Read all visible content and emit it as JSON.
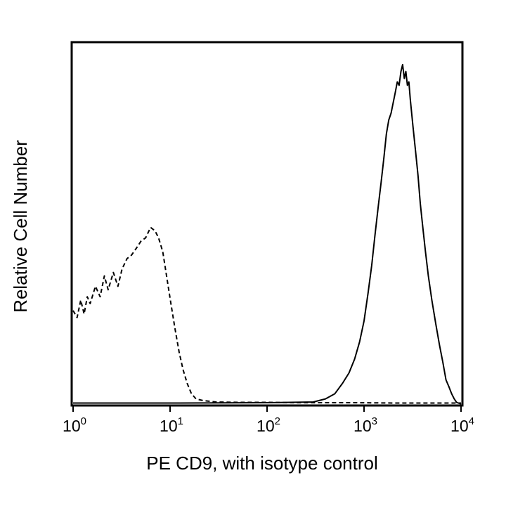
{
  "chart_data": {
    "type": "line",
    "title": "",
    "xlabel": "PE CD9, with isotype control",
    "ylabel": "Relative Cell Number",
    "xscale": "log",
    "xlim": [
      1,
      10000
    ],
    "ylim": [
      0,
      100
    ],
    "grid": false,
    "legend": "none",
    "x_ticks": [
      {
        "base": "10",
        "exp": "0",
        "value": 1
      },
      {
        "base": "10",
        "exp": "1",
        "value": 10
      },
      {
        "base": "10",
        "exp": "2",
        "value": 100
      },
      {
        "base": "10",
        "exp": "3",
        "value": 1000
      },
      {
        "base": "10",
        "exp": "4",
        "value": 10000
      }
    ],
    "series": [
      {
        "name": "isotype control",
        "style": "dashed",
        "color": "#000000",
        "x": [
          1.0,
          1.1,
          1.2,
          1.3,
          1.4,
          1.5,
          1.7,
          1.9,
          2.1,
          2.3,
          2.6,
          2.9,
          3.2,
          3.6,
          4.0,
          4.5,
          5.0,
          5.6,
          6.3,
          7.0,
          7.6,
          8.4,
          9.2,
          10.2,
          11.2,
          12.4,
          13.6,
          15.0,
          16.6,
          18.5,
          22,
          30,
          50,
          100,
          200,
          400,
          800,
          2000,
          5000,
          10000
        ],
        "values": [
          27,
          25,
          30,
          26,
          31,
          29,
          34,
          31,
          37,
          33,
          38,
          34,
          39,
          42,
          43,
          45,
          47,
          48,
          51,
          50,
          48,
          44,
          37,
          29,
          22,
          15,
          10,
          6,
          3,
          1.5,
          1,
          0.6,
          0.5,
          0.5,
          0.4,
          0.4,
          0.4,
          0.3,
          0.3,
          0.3
        ]
      },
      {
        "name": "PE CD9",
        "style": "solid",
        "color": "#000000",
        "x": [
          1,
          10,
          100,
          300,
          400,
          500,
          600,
          700,
          800,
          900,
          1000,
          1100,
          1200,
          1300,
          1400,
          1500,
          1600,
          1700,
          1800,
          1900,
          2000,
          2100,
          2200,
          2300,
          2400,
          2500,
          2600,
          2700,
          2800,
          2900,
          3000,
          3200,
          3400,
          3600,
          3800,
          4000,
          4300,
          4600,
          5000,
          5500,
          6000,
          6500,
          7000,
          7500,
          8000,
          8500,
          9000,
          10000
        ],
        "values": [
          0.3,
          0.3,
          0.4,
          0.6,
          1.5,
          3,
          6,
          9,
          13,
          18,
          24,
          32,
          40,
          49,
          57,
          64,
          71,
          78,
          82,
          84,
          87,
          90,
          93,
          92,
          96,
          98,
          94,
          96,
          92,
          93,
          88,
          80,
          73,
          66,
          58,
          52,
          44,
          37,
          30,
          23,
          17,
          12,
          7,
          5,
          3,
          1.5,
          0.5,
          0
        ]
      }
    ]
  }
}
